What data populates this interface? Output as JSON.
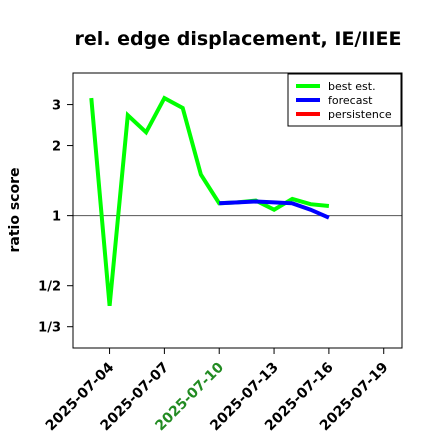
{
  "chart_data": {
    "type": "line",
    "title": "rel. edge displacement, IE/IIEE",
    "ylabel": "ratio score",
    "xlabel": "",
    "y_scale": "log",
    "ylim": [
      0.27,
      4.1
    ],
    "x_range": [
      "2025-07-02",
      "2025-07-20"
    ],
    "y_ticks": [
      {
        "value": 0.3333,
        "label": "1/3"
      },
      {
        "value": 0.5,
        "label": "1/2"
      },
      {
        "value": 1,
        "label": "1"
      },
      {
        "value": 2,
        "label": "2"
      },
      {
        "value": 3,
        "label": "3"
      }
    ],
    "x_ticks": [
      {
        "value": "2025-07-04",
        "label": "2025-07-04",
        "color": "#000000"
      },
      {
        "value": "2025-07-07",
        "label": "2025-07-07",
        "color": "#000000"
      },
      {
        "value": "2025-07-10",
        "label": "2025-07-10",
        "color": "#228B22"
      },
      {
        "value": "2025-07-13",
        "label": "2025-07-13",
        "color": "#000000"
      },
      {
        "value": "2025-07-16",
        "label": "2025-07-16",
        "color": "#000000"
      },
      {
        "value": "2025-07-19",
        "label": "2025-07-19",
        "color": "#000000"
      }
    ],
    "reference_line": 1,
    "legend_position": "top-right",
    "series": [
      {
        "name": "best est.",
        "color": "#00ff00",
        "points": [
          {
            "x": "2025-07-03",
            "y": 3.2
          },
          {
            "x": "2025-07-04",
            "y": 0.41
          },
          {
            "x": "2025-07-05",
            "y": 2.7
          },
          {
            "x": "2025-07-06",
            "y": 2.28
          },
          {
            "x": "2025-07-07",
            "y": 3.2
          },
          {
            "x": "2025-07-08",
            "y": 2.9
          },
          {
            "x": "2025-07-09",
            "y": 1.5
          },
          {
            "x": "2025-07-10",
            "y": 1.13
          },
          {
            "x": "2025-07-11",
            "y": 1.14
          },
          {
            "x": "2025-07-12",
            "y": 1.16
          },
          {
            "x": "2025-07-13",
            "y": 1.06
          },
          {
            "x": "2025-07-14",
            "y": 1.18
          },
          {
            "x": "2025-07-15",
            "y": 1.12
          },
          {
            "x": "2025-07-16",
            "y": 1.1
          }
        ]
      },
      {
        "name": "forecast",
        "color": "#0000ff",
        "points": [
          {
            "x": "2025-07-10",
            "y": 1.13
          },
          {
            "x": "2025-07-11",
            "y": 1.14
          },
          {
            "x": "2025-07-12",
            "y": 1.15
          },
          {
            "x": "2025-07-13",
            "y": 1.14
          },
          {
            "x": "2025-07-14",
            "y": 1.13
          },
          {
            "x": "2025-07-15",
            "y": 1.06
          },
          {
            "x": "2025-07-16",
            "y": 0.98
          }
        ]
      },
      {
        "name": "persistence",
        "color": "#ff0000",
        "points": []
      }
    ]
  }
}
